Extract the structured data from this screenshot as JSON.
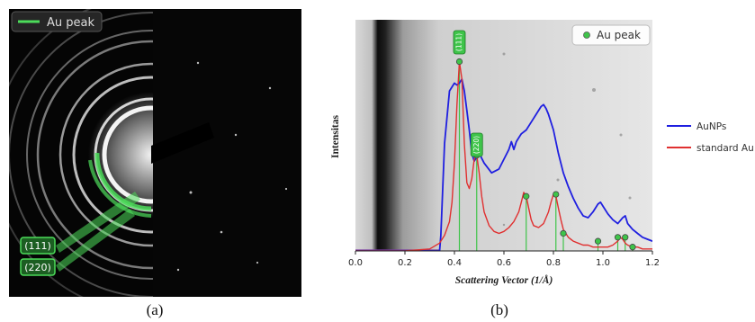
{
  "panel_a": {
    "caption": "(a)",
    "legend_label": "Au peak",
    "ring_labels": [
      "(111)",
      "(220)"
    ]
  },
  "panel_b": {
    "caption": "(b)"
  },
  "chart_data": {
    "type": "line",
    "title": "",
    "xlabel": "Scattering Vector (1/Å)",
    "ylabel": "Intensitas",
    "xlim": [
      0.0,
      1.2
    ],
    "xticks": [
      "0.0",
      "0.2",
      "0.4",
      "0.6",
      "0.8",
      "1.0",
      "1.2"
    ],
    "ylim": [
      0,
      1
    ],
    "grid": false,
    "legend_inside": {
      "label": "Au peak",
      "placement": "top-right"
    },
    "legend_outside_placement": "right",
    "peak_labels": [
      {
        "text": "(111)",
        "x": 0.42
      },
      {
        "text": "(220)",
        "x": 0.49
      }
    ],
    "series": [
      {
        "name": "AuNPs",
        "color": "#1f1fe0",
        "x": [
          0.0,
          0.34,
          0.345,
          0.36,
          0.38,
          0.4,
          0.41,
          0.42,
          0.43,
          0.44,
          0.45,
          0.46,
          0.47,
          0.48,
          0.5,
          0.52,
          0.55,
          0.58,
          0.6,
          0.62,
          0.63,
          0.64,
          0.65,
          0.66,
          0.67,
          0.69,
          0.71,
          0.73,
          0.75,
          0.76,
          0.77,
          0.78,
          0.8,
          0.82,
          0.84,
          0.86,
          0.88,
          0.9,
          0.92,
          0.94,
          0.96,
          0.98,
          0.99,
          1.0,
          1.02,
          1.04,
          1.06,
          1.08,
          1.09,
          1.1,
          1.12,
          1.14,
          1.16,
          1.18,
          1.2
        ],
        "y": [
          0.0,
          0.0,
          0.08,
          0.55,
          0.82,
          0.86,
          0.85,
          0.86,
          0.88,
          0.82,
          0.72,
          0.62,
          0.5,
          0.46,
          0.5,
          0.45,
          0.4,
          0.42,
          0.47,
          0.52,
          0.56,
          0.52,
          0.56,
          0.58,
          0.6,
          0.62,
          0.66,
          0.7,
          0.74,
          0.75,
          0.73,
          0.7,
          0.62,
          0.5,
          0.4,
          0.33,
          0.27,
          0.22,
          0.18,
          0.17,
          0.2,
          0.24,
          0.25,
          0.23,
          0.19,
          0.16,
          0.14,
          0.17,
          0.18,
          0.14,
          0.11,
          0.09,
          0.07,
          0.06,
          0.05
        ]
      },
      {
        "name": "standard Au",
        "color": "#e03030",
        "x": [
          0.0,
          0.2,
          0.3,
          0.34,
          0.36,
          0.38,
          0.39,
          0.4,
          0.41,
          0.42,
          0.43,
          0.44,
          0.45,
          0.46,
          0.47,
          0.48,
          0.49,
          0.5,
          0.51,
          0.52,
          0.54,
          0.56,
          0.58,
          0.6,
          0.62,
          0.64,
          0.66,
          0.67,
          0.68,
          0.69,
          0.7,
          0.71,
          0.72,
          0.74,
          0.76,
          0.78,
          0.79,
          0.8,
          0.81,
          0.82,
          0.83,
          0.84,
          0.86,
          0.88,
          0.9,
          0.92,
          0.94,
          0.96,
          0.98,
          1.0,
          1.02,
          1.04,
          1.06,
          1.07,
          1.08,
          1.09,
          1.1,
          1.12,
          1.14,
          1.16,
          1.18,
          1.2
        ],
        "y": [
          0.0,
          0.0,
          0.01,
          0.04,
          0.08,
          0.15,
          0.25,
          0.45,
          0.75,
          0.97,
          0.88,
          0.55,
          0.35,
          0.32,
          0.37,
          0.47,
          0.49,
          0.4,
          0.28,
          0.2,
          0.13,
          0.1,
          0.09,
          0.1,
          0.12,
          0.15,
          0.2,
          0.25,
          0.3,
          0.28,
          0.22,
          0.16,
          0.13,
          0.12,
          0.14,
          0.2,
          0.25,
          0.29,
          0.28,
          0.22,
          0.16,
          0.11,
          0.07,
          0.05,
          0.04,
          0.03,
          0.03,
          0.02,
          0.02,
          0.02,
          0.02,
          0.03,
          0.05,
          0.07,
          0.06,
          0.04,
          0.03,
          0.02,
          0.02,
          0.01,
          0.01,
          0.01
        ]
      }
    ],
    "markers": {
      "name": "Au peak",
      "color": "#3fc44a",
      "x": [
        0.42,
        0.49,
        0.69,
        0.81,
        0.84,
        0.98,
        1.06,
        1.09,
        1.12
      ],
      "y": [
        0.97,
        0.49,
        0.28,
        0.29,
        0.09,
        0.05,
        0.07,
        0.07,
        0.02
      ]
    }
  }
}
